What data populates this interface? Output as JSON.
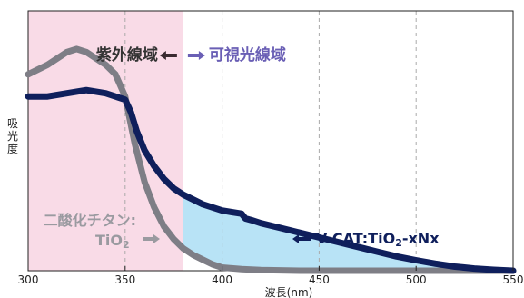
{
  "chart_data": {
    "type": "line",
    "xlabel": "波長(nm)",
    "ylabel": "吸光度",
    "xlim": [
      300,
      550
    ],
    "x_ticks": [
      300,
      350,
      400,
      450,
      500,
      550
    ],
    "grid": "vertical dashed at 350, 400, 450, 500",
    "regions": [
      {
        "label": "紫外線域",
        "x_range": [
          300,
          380
        ],
        "color": "#f9dbe7"
      },
      {
        "label": "可視光線域",
        "x_range": [
          380,
          550
        ],
        "color": "#ffffff"
      }
    ],
    "region_boundary": 380,
    "shaded_area": {
      "between": [
        "V-CAT:TiO2-xNx",
        "TiO2"
      ],
      "x_range": [
        380,
        550
      ],
      "color": "#b8e3f6"
    },
    "series": [
      {
        "name": "TiO2",
        "color": "#7e7e86",
        "x": [
          300,
          310,
          320,
          325,
          330,
          340,
          345,
          350,
          355,
          360,
          365,
          370,
          375,
          380,
          385,
          390,
          395,
          400,
          410,
          420,
          440,
          470,
          500,
          530,
          550
        ],
        "y": [
          0.62,
          0.65,
          0.69,
          0.7,
          0.69,
          0.65,
          0.62,
          0.55,
          0.4,
          0.28,
          0.2,
          0.14,
          0.1,
          0.07,
          0.05,
          0.035,
          0.02,
          0.01,
          0.005,
          0.002,
          0.0,
          0.0,
          0.0,
          0.0,
          0.0
        ]
      },
      {
        "name": "V-CAT:TiO2-xNx",
        "color": "#0f1f5c",
        "x": [
          300,
          310,
          320,
          330,
          340,
          345,
          350,
          353,
          356,
          360,
          365,
          370,
          375,
          380,
          390,
          400,
          405,
          410,
          412,
          415,
          420,
          430,
          440,
          450,
          460,
          470,
          480,
          490,
          500,
          510,
          520,
          530,
          540,
          550
        ],
        "y": [
          0.55,
          0.55,
          0.56,
          0.57,
          0.56,
          0.55,
          0.54,
          0.5,
          0.44,
          0.38,
          0.33,
          0.29,
          0.26,
          0.24,
          0.21,
          0.19,
          0.185,
          0.18,
          0.165,
          0.16,
          0.15,
          0.135,
          0.12,
          0.105,
          0.09,
          0.075,
          0.06,
          0.045,
          0.033,
          0.022,
          0.013,
          0.007,
          0.003,
          0.0
        ]
      }
    ],
    "annotations": {
      "uv": "紫外線域",
      "visible": "可視光線域",
      "tio2_line1": "二酸化チタン:",
      "tio2_line2": "TiO",
      "tio2_sub": "2",
      "vcat_main": "V-CAT:TiO",
      "vcat_sub": "2",
      "vcat_tail": "-xNx"
    },
    "colors": {
      "uv_text": "#333333",
      "visible_text": "#6a5fb5",
      "tio2_text": "#9a9aa0",
      "vcat_text": "#0f1f5c",
      "axis": "#222222",
      "grid": "#aaaaaa"
    }
  }
}
